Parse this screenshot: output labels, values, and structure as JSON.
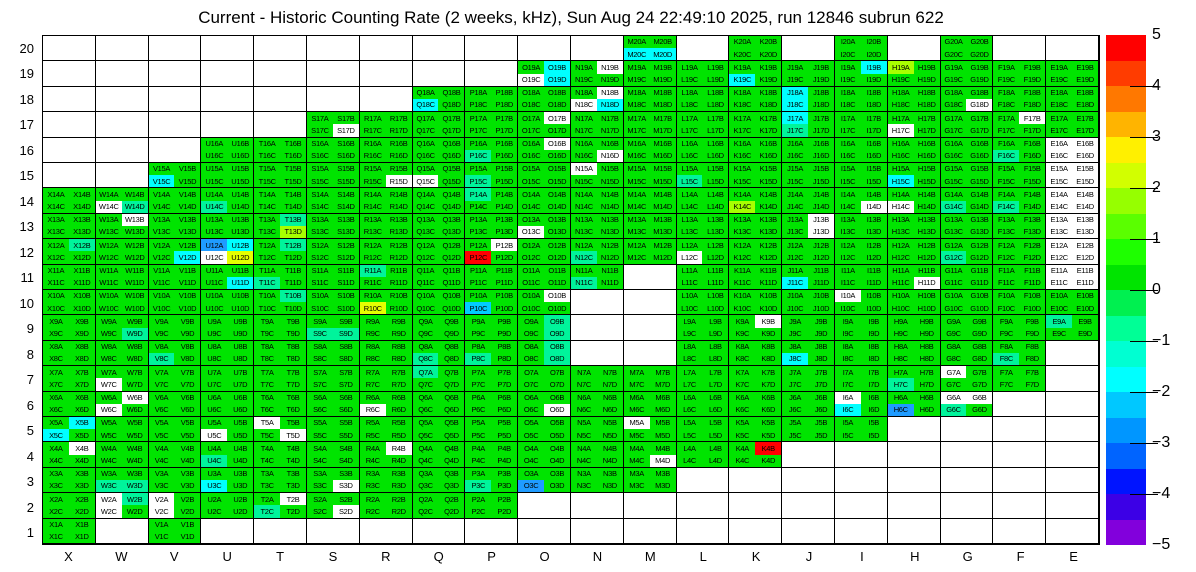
{
  "title": "Current - Historic Counting Rate (2 weeks, kHz), Sun Aug 24 22:49:10 2025, run 12846 subrun 622",
  "chart_data": {
    "type": "heatmap",
    "title": "Current - Historic Counting Rate (2 weeks, kHz), Sun Aug 24 22:49:10 2025, run 12846 subrun 622",
    "columns": [
      "X",
      "W",
      "V",
      "U",
      "T",
      "S",
      "R",
      "Q",
      "P",
      "O",
      "N",
      "M",
      "L",
      "K",
      "J",
      "I",
      "H",
      "G",
      "F",
      "E"
    ],
    "rows": [
      20,
      19,
      18,
      17,
      16,
      15,
      14,
      13,
      12,
      11,
      10,
      9,
      8,
      7,
      6,
      5,
      4,
      3,
      2,
      1
    ],
    "quadrant_suffixes": [
      "A",
      "B",
      "C",
      "D"
    ],
    "grid_on": true,
    "palette": {
      "g": "#00e400",
      "s": "#00f49b",
      "c": "#00ffff",
      "y": "#e6ff00",
      "Y": "#a8ff00",
      "r": "#ff0000",
      "b": "#1f9bff",
      "l": "#00ccff",
      "w": "#ffffff"
    },
    "cells": {
      "M20": "ggcc",
      "K20": "gggg",
      "I20": "gggg",
      "G20": "gggg",
      "O19": "gcwc",
      "N19": "gwgg",
      "M19": "gggg",
      "L19": "gggg",
      "K19": "ggcg",
      "J19": "gggg",
      "I19": "gcgg",
      "H19": "Yggg",
      "G19": "gggg",
      "F19": "gggg",
      "E19": "gggg",
      "Q18": "ggcg",
      "P18": "gggg",
      "O18": "gggg",
      "N18": "gwwc",
      "M18": "gggg",
      "L18": "gggg",
      "K18": "gggg",
      "J18": "cgcg",
      "I18": "gggg",
      "H18": "gggg",
      "G18": "gggw",
      "F18": "gggg",
      "E18": "gggg",
      "S17": "gggw",
      "R17": "gggg",
      "Q17": "gggg",
      "P17": "gggg",
      "O17": "gwgg",
      "N17": "gggg",
      "M17": "gggg",
      "L17": "gggg",
      "K17": "gggg",
      "J17": "cgsg",
      "I17": "gggg",
      "H17": "ggwg",
      "G17": "gggg",
      "F17": "gwgg",
      "E17": "gggg",
      "U16": "gggg",
      "T16": "gggg",
      "S16": "gggg",
      "R16": "gggg",
      "Q16": "gggg",
      "P16": "ggsg",
      "O16": "gwgg",
      "N16": "gggw",
      "M16": "gggg",
      "L16": "gggg",
      "K16": "gggg",
      "J16": "gggg",
      "I16": "gggg",
      "H16": "gggg",
      "G16": "gggg",
      "F16": "ggsg",
      "E16": "wwww",
      "V15": "ggcg",
      "U15": "gggg",
      "T15": "gggg",
      "S15": "gggg",
      "R15": "gggw",
      "Q15": "ggwg",
      "P15": "ggsg",
      "O15": "gggg",
      "N15": "wggg",
      "M15": "gggg",
      "L15": "ggsg",
      "K15": "gggg",
      "J15": "gggg",
      "I15": "gggg",
      "H15": "ggcg",
      "G15": "gggg",
      "F15": "gggg",
      "E15": "wwww",
      "X14": "gggg",
      "W14": "ggws",
      "V14": "gggg",
      "U14": "ggsg",
      "T14": "gggg",
      "S14": "gggg",
      "R14": "gggg",
      "Q14": "gggg",
      "P14": "sggg",
      "O14": "gggg",
      "N14": "gggg",
      "M14": "gggg",
      "L14": "gggg",
      "K14": "ggYg",
      "J14": "gggg",
      "I14": "gggw",
      "H14": "ggwg",
      "G14": "ggsg",
      "F14": "ggsg",
      "E14": "wwww",
      "X13": "gggg",
      "W13": "gwgg",
      "V13": "gggg",
      "U13": "gggg",
      "T13": "gsgY",
      "S13": "gggg",
      "R13": "gggg",
      "Q13": "gggg",
      "P13": "gggg",
      "O13": "ggwg",
      "N13": "gggg",
      "M13": "gggg",
      "L13": "gggg",
      "K13": "gggg",
      "J13": "gwgw",
      "I13": "gggg",
      "H13": "gggg",
      "G13": "gggg",
      "F13": "gggg",
      "E13": "wwww",
      "X12": "gsgg",
      "W12": "gggg",
      "V12": "gggc",
      "U12": "bcwy",
      "T12": "gsgg",
      "S12": "gggg",
      "R12": "gggg",
      "Q12": "gggg",
      "P12": "gwrg",
      "O12": "gggg",
      "N12": "ggsg",
      "M12": "gggg",
      "L12": "ggwg",
      "K12": "gggg",
      "J12": "gggg",
      "I12": "gggg",
      "H12": "gggg",
      "G12": "ggsg",
      "F12": "gggg",
      "E12": "wwww",
      "X11": "gggg",
      "W11": "gggg",
      "V11": "gggg",
      "U11": "gggc",
      "T11": "ggsg",
      "S11": "gggg",
      "R11": "sggg",
      "Q11": "gggg",
      "P11": "gggg",
      "O11": "gggg",
      "N11": "ggsg",
      "L11": "gggg",
      "K11": "gggg",
      "J11": "ggcg",
      "I11": "gggg",
      "H11": "gggw",
      "G11": "gggg",
      "F11": "gggg",
      "E11": "wwww",
      "X10": "gggg",
      "W10": "gggg",
      "V10": "gggg",
      "U10": "gggg",
      "T10": "gsgg",
      "S10": "gggg",
      "R10": "ggyg",
      "Q10": "gggg",
      "P10": "gglg",
      "O10": "gwgg",
      "L10": "gggg",
      "K10": "gggg",
      "J10": "gggg",
      "I10": "wggg",
      "H10": "gggg",
      "G10": "gggg",
      "F10": "gggg",
      "E10": "gggg",
      "X9": "gggg",
      "W9": "gggs",
      "V9": "gggg",
      "U9": "gggg",
      "T9": "gggg",
      "S9": "ggss",
      "R9": "gggg",
      "Q9": "gggg",
      "P9": "gggg",
      "O9": "gsgs",
      "L9": "gggg",
      "K9": "gwgg",
      "J9": "gggg",
      "I9": "gggg",
      "H9": "gggg",
      "G9": "gggg",
      "F9": "gggg",
      "E9": "sggg",
      "X8": "gggg",
      "W8": "gggg",
      "V8": "ggsg",
      "U8": "gggg",
      "T8": "gggg",
      "S8": "gggg",
      "R8": "gggg",
      "Q8": "ggsg",
      "P8": "ggsg",
      "O8": "gsgs",
      "L8": "gggg",
      "K8": "gggg",
      "J8": "ggcg",
      "I8": "gggg",
      "H8": "gggg",
      "G8": "gggg",
      "F8": "ggsg",
      "X7": "gggg",
      "W7": "ggwg",
      "V7": "gggg",
      "U7": "gggg",
      "T7": "gggg",
      "S7": "gggg",
      "R7": "gggg",
      "Q7": "sggg",
      "P7": "gggg",
      "O7": "gggg",
      "N7": "gggg",
      "M7": "gggg",
      "L7": "gggg",
      "K7": "gggg",
      "J7": "gggg",
      "I7": "gggg",
      "H7": "ggsg",
      "G7": "wggg",
      "F7": "gggg",
      "X6": "gggg",
      "W6": "gwwg",
      "V6": "gggg",
      "U6": "gggg",
      "T6": "gggg",
      "S6": "gggg",
      "R6": "ggwg",
      "Q6": "gggg",
      "P6": "gggg",
      "O6": "gggw",
      "N6": "gggg",
      "M6": "gggg",
      "L6": "gggg",
      "K6": "gggg",
      "J6": "gggg",
      "I6": "wgcg",
      "H6": "ggbg",
      "G6": "wwsg",
      "X5": "gccg",
      "W5": "gggg",
      "V5": "gggg",
      "U5": "ggwg",
      "T5": "wggw",
      "S5": "gggg",
      "R5": "gggg",
      "Q5": "gggg",
      "P5": "gggg",
      "O5": "gggg",
      "N5": "gggg",
      "M5": "wggg",
      "L5": "gggg",
      "K5": "gggg",
      "J5": "gggg",
      "I5": "gggg",
      "X4": "gwgg",
      "W4": "gggg",
      "V4": "gggg",
      "U4": "ggsg",
      "T4": "gggg",
      "S4": "gggg",
      "R4": "gwgg",
      "Q4": "gggg",
      "P4": "gggg",
      "O4": "gggg",
      "N4": "gggg",
      "M4": "gggw",
      "L4": "gggg",
      "K4": "grgg",
      "X3": "gggg",
      "W3": "ggss",
      "V3": "gggg",
      "U3": "ggcg",
      "T3": "gggg",
      "S3": "gggw",
      "R3": "gggg",
      "Q3": "gggg",
      "P3": "ggsg",
      "O3": "ggbg",
      "N3": "gggg",
      "M3": "gggg",
      "X2": "gggg",
      "W2": "wswg",
      "V2": "wgwg",
      "U2": "gggg",
      "T2": "gwsg",
      "S2": "gggw",
      "R2": "gggg",
      "Q2": "gggg",
      "P2": "gggg",
      "X1": "gggg",
      "V1": "gggg"
    },
    "colorbar": {
      "min": -5,
      "max": 5,
      "tick_labels": [
        "5",
        "4",
        "3",
        "2",
        "1",
        "0",
        "−1",
        "−2",
        "−3",
        "−4",
        "−5"
      ],
      "band_colors": [
        "#ff0000",
        "#ff3c00",
        "#ff7800",
        "#ffb400",
        "#fff000",
        "#d2ff00",
        "#96ff00",
        "#5aff00",
        "#1eff00",
        "#00e400",
        "#00f050",
        "#00ff96",
        "#00ffd2",
        "#00ffff",
        "#00c8ff",
        "#0096ff",
        "#0064ff",
        "#0014ff",
        "#3c00e6",
        "#8200dc"
      ]
    }
  }
}
